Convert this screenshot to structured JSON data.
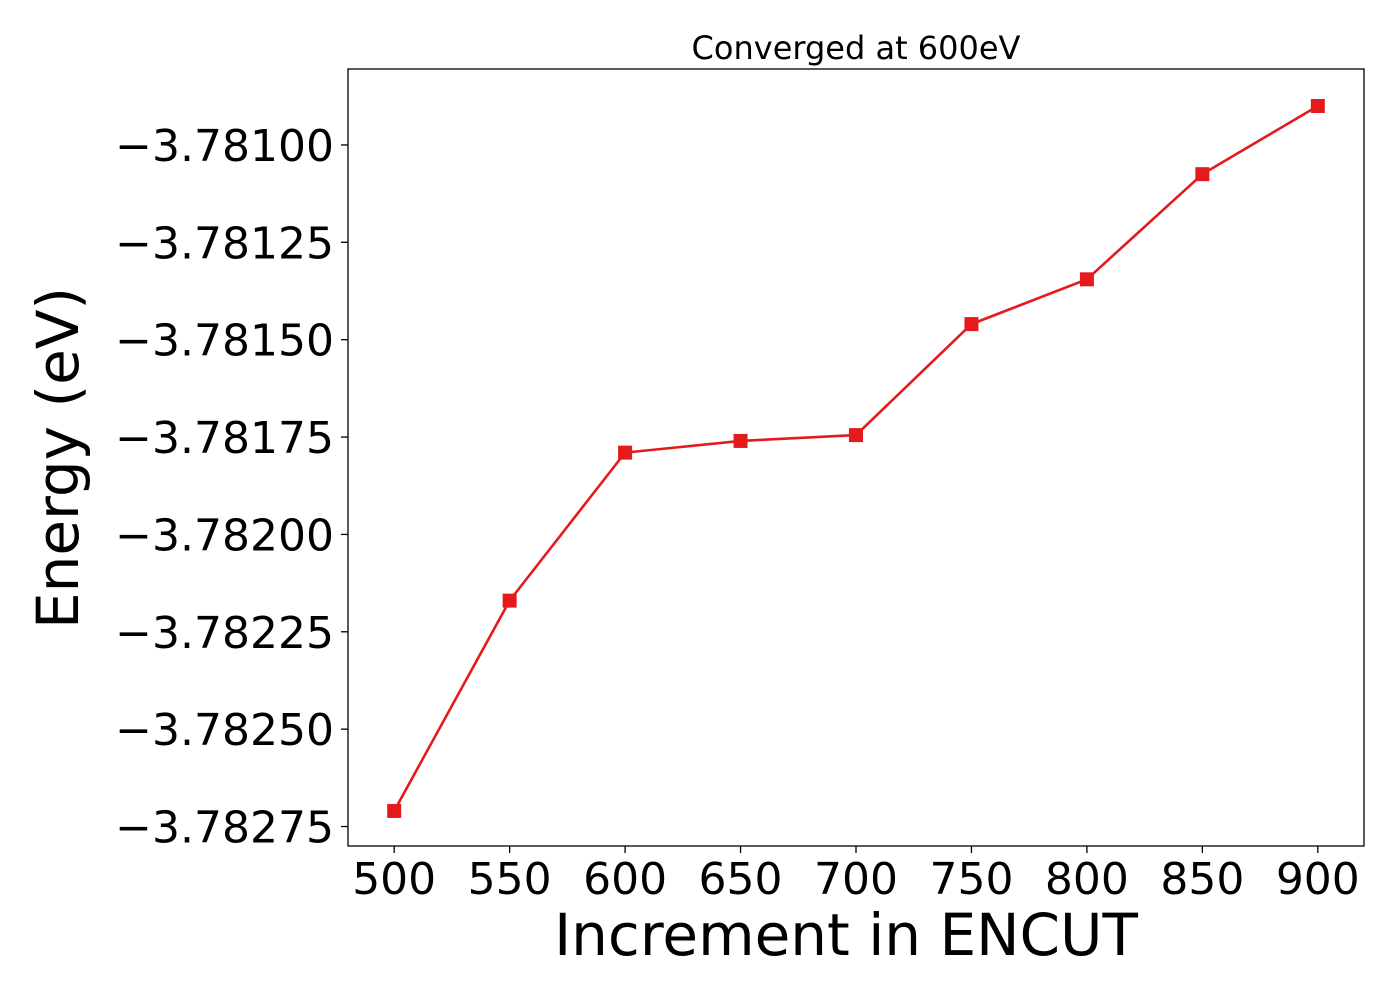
{
  "chart_data": {
    "type": "line",
    "title": "Converged at 600eV",
    "xlabel": "Increment in ENCUT",
    "ylabel": "Energy (eV)",
    "x": [
      500,
      550,
      600,
      650,
      700,
      750,
      800,
      850,
      900
    ],
    "series": [
      {
        "values": [
          -3.78271,
          -3.78217,
          -3.78179,
          -3.78176,
          -3.781745,
          -3.78146,
          -3.781345,
          -3.781075,
          -3.7809
        ]
      }
    ],
    "xlim": [
      480,
      920
    ],
    "ylim": [
      -3.7828,
      -3.780805
    ],
    "xticks": [
      500,
      550,
      600,
      650,
      700,
      750,
      800,
      850,
      900
    ],
    "xtick_labels": [
      "500",
      "550",
      "600",
      "650",
      "700",
      "750",
      "800",
      "850",
      "900"
    ],
    "yticks": [
      -3.78275,
      -3.7825,
      -3.78225,
      -3.782,
      -3.78175,
      -3.7815,
      -3.78125,
      -3.781
    ],
    "ytick_labels": [
      "−3.78275",
      "−3.78250",
      "−3.78225",
      "−3.78200",
      "−3.78175",
      "−3.78150",
      "−3.78125",
      "−3.78100"
    ],
    "marker": "square",
    "line_color": "#e41a1c",
    "grid": false,
    "legend": false
  }
}
